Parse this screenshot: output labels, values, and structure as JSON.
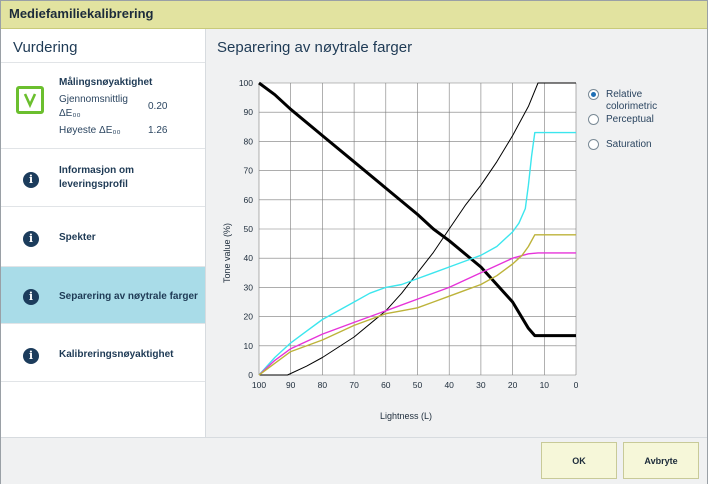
{
  "window": {
    "title": "Mediefamiliekalibrering"
  },
  "sidebar": {
    "title": "Vurdering",
    "measurement": {
      "title": "Målingsnøyaktighet",
      "avg_label_1": "Gjennomsnittlig",
      "avg_label_2": "ΔE₀₀",
      "avg_value": "0.20",
      "max_label": "Høyeste ΔE₀₀",
      "max_value": "1.26"
    },
    "items": [
      {
        "label_1": "Informasjon om",
        "label_2": "leveringsprofil"
      },
      {
        "label_1": "Spekter"
      },
      {
        "label_1": "Separering av nøytrale farger"
      },
      {
        "label_1": "Kalibreringsnøyaktighet"
      }
    ]
  },
  "main": {
    "title": "Separering av nøytrale farger",
    "rendering_options": [
      {
        "label_1": "Relative",
        "label_2": "colorimetric",
        "selected": true
      },
      {
        "label_1": "Perceptual",
        "selected": false
      },
      {
        "label_1": "Saturation",
        "selected": false
      }
    ]
  },
  "footer": {
    "ok_label": "OK",
    "cancel_label": "Avbryte"
  },
  "icons": {
    "check": "checkmark-icon",
    "info": "info-icon",
    "radio": "radio-icon"
  },
  "colors": {
    "title_bar": "#e2e3a0",
    "selected_item": "#a9dce8",
    "check": "#6bbf2e",
    "cyan": "#3ce6ee",
    "magenta": "#e633d9",
    "yellow": "#bdb33a",
    "black": "#000000"
  },
  "chart_data": {
    "type": "line",
    "xlabel": "Lightness (L)",
    "ylabel": "Tone value (%)",
    "xlim": [
      100,
      0
    ],
    "ylim": [
      0,
      100
    ],
    "x_ticks": [
      "100",
      "90",
      "80",
      "70",
      "60",
      "50",
      "40",
      "30",
      "20",
      "10",
      "0"
    ],
    "y_ticks": [
      "0",
      "10",
      "20",
      "30",
      "40",
      "50",
      "60",
      "70",
      "80",
      "90",
      "100"
    ],
    "grid": true,
    "series": [
      {
        "color": "#000000",
        "width": 3,
        "x": [
          100,
          95,
          90,
          80,
          70,
          60,
          50,
          45,
          40,
          30,
          20,
          15,
          13,
          0
        ],
        "y": [
          100,
          96,
          91,
          82,
          73,
          64,
          55,
          50,
          46,
          37,
          25,
          16,
          13.5,
          13.5
        ]
      },
      {
        "color": "#000000",
        "width": 1,
        "x": [
          100,
          91,
          85,
          80,
          70,
          60,
          55,
          50,
          45,
          40,
          35,
          30,
          25,
          20,
          15,
          12,
          0
        ],
        "y": [
          0,
          0,
          3,
          6,
          13,
          22,
          28,
          35,
          42,
          50,
          58,
          65,
          73,
          82,
          92,
          100,
          100
        ]
      },
      {
        "color": "#3ce6ee",
        "width": 1.4,
        "x": [
          100,
          95,
          90,
          85,
          80,
          75,
          70,
          65,
          60,
          55,
          50,
          45,
          40,
          35,
          30,
          25,
          20,
          18,
          16,
          15,
          14,
          13,
          0
        ],
        "y": [
          0,
          6,
          11,
          15,
          19,
          22,
          25,
          28,
          30,
          31,
          33,
          35,
          37,
          39,
          41,
          44,
          49,
          52,
          57,
          65,
          75,
          83,
          83
        ]
      },
      {
        "color": "#e633d9",
        "width": 1.4,
        "x": [
          100,
          95,
          90,
          80,
          70,
          60,
          50,
          40,
          30,
          20,
          15,
          12,
          0
        ],
        "y": [
          0,
          5,
          9,
          14,
          18,
          22,
          26,
          30,
          35,
          40,
          41.5,
          41.8,
          41.8
        ]
      },
      {
        "color": "#bdb33a",
        "width": 1.4,
        "x": [
          100,
          95,
          90,
          80,
          70,
          60,
          55,
          50,
          45,
          40,
          35,
          30,
          25,
          20,
          17,
          15,
          13,
          0
        ],
        "y": [
          0,
          4,
          8,
          12,
          17,
          21,
          22,
          23,
          25,
          27,
          29,
          31,
          34,
          38,
          41,
          44,
          48,
          48
        ]
      }
    ]
  }
}
